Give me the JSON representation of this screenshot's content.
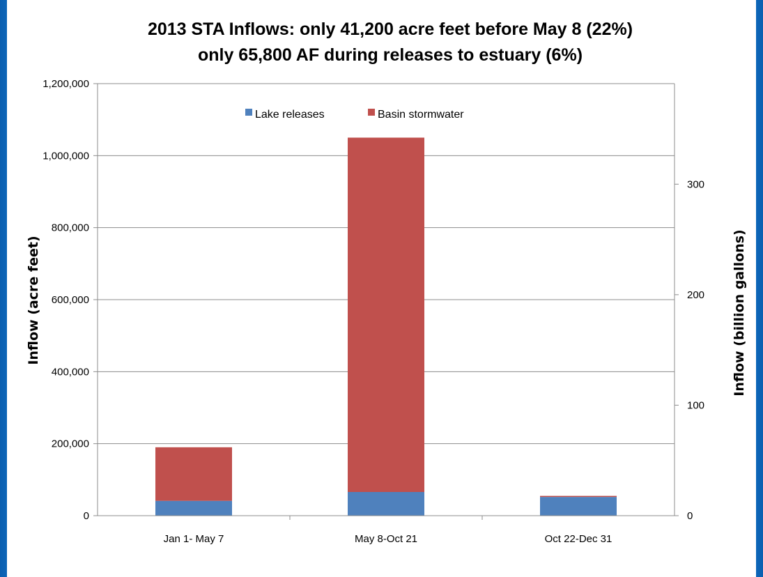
{
  "chart_data": {
    "type": "bar",
    "stacked": true,
    "title_lines": [
      "2013 STA Inflows: only 41,200 acre feet before May 8 (22%)",
      "only 65,800 AF during releases to estuary (6%)"
    ],
    "categories": [
      "Jan 1- May 7",
      "May 8-Oct 21",
      "Oct 22-Dec 31"
    ],
    "series": [
      {
        "name": "Lake releases",
        "color": "#4f81bd",
        "values": [
          41200,
          65800,
          52000
        ]
      },
      {
        "name": "Basin stormwater",
        "color": "#c0504d",
        "values": [
          148800,
          984200,
          3000
        ]
      }
    ],
    "ylabel": "Inflow (acre feet)",
    "ylim": [
      0,
      1200000
    ],
    "y_ticks": [
      "0",
      "200,000",
      "400,000",
      "600,000",
      "800,000",
      "1,000,000",
      "1,200,000"
    ],
    "y2label": "Inflow (billion gallons)",
    "y2_ticks": [
      "0",
      "100",
      "200",
      "300"
    ],
    "y2_tick_values": [
      0,
      100,
      200,
      300
    ],
    "y2_per_acre_foot_billion_gallons": 0.000325851,
    "grid": true,
    "legend_position": "top-center"
  }
}
